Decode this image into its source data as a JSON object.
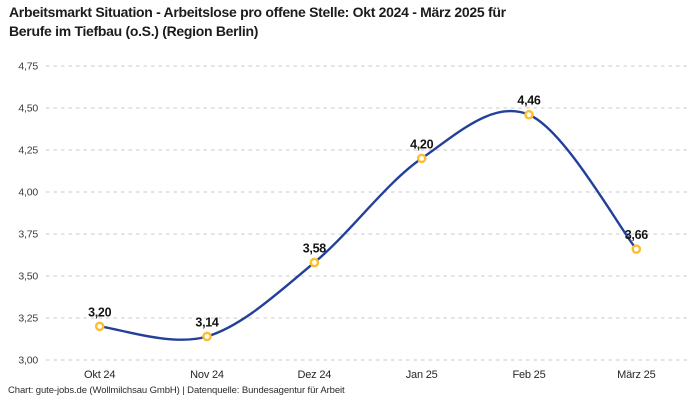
{
  "title": "Arbeitsmarkt Situation - Arbeitslose pro offene Stelle: Okt 2024 - März 2025 für\nBerufe im Tiefbau (o.S.) (Region Berlin)",
  "footer": "Chart: gute-jobs.de (Wollmilchsau GmbH) | Datenquelle: Bundesagentur für Arbeit",
  "chart_data": {
    "type": "line",
    "title": "Arbeitsmarkt Situation - Arbeitslose pro offene Stelle: Okt 2024 - März 2025 für Berufe im Tiefbau (o.S.) (Region Berlin)",
    "categories": [
      "Okt 24",
      "Nov 24",
      "Dez 24",
      "Jan 25",
      "Feb 25",
      "März 25"
    ],
    "values": [
      3.2,
      3.14,
      3.58,
      4.2,
      4.46,
      3.66
    ],
    "value_labels": [
      "3,20",
      "3,14",
      "3,58",
      "4,20",
      "4,46",
      "3,66"
    ],
    "ylim": [
      3.0,
      4.75
    ],
    "yticks": [
      3.0,
      3.25,
      3.5,
      3.75,
      4.0,
      4.25,
      4.5,
      4.75
    ],
    "ytick_labels": [
      "3,00",
      "3,25",
      "3,50",
      "3,75",
      "4,00",
      "4,25",
      "4,50",
      "4,75"
    ],
    "xlabel": "",
    "ylabel": "",
    "legend": "none",
    "grid": "horizontal-dashed",
    "smooth": true,
    "colors": {
      "line": "#22409a",
      "marker_ring": "#fcbe2d",
      "marker_fill": "#ffffff",
      "gridline": "#c9c9c9",
      "title_text": "#1c1c1c",
      "tick_text": "#3b3b3b",
      "data_label_text": "#141414"
    }
  }
}
